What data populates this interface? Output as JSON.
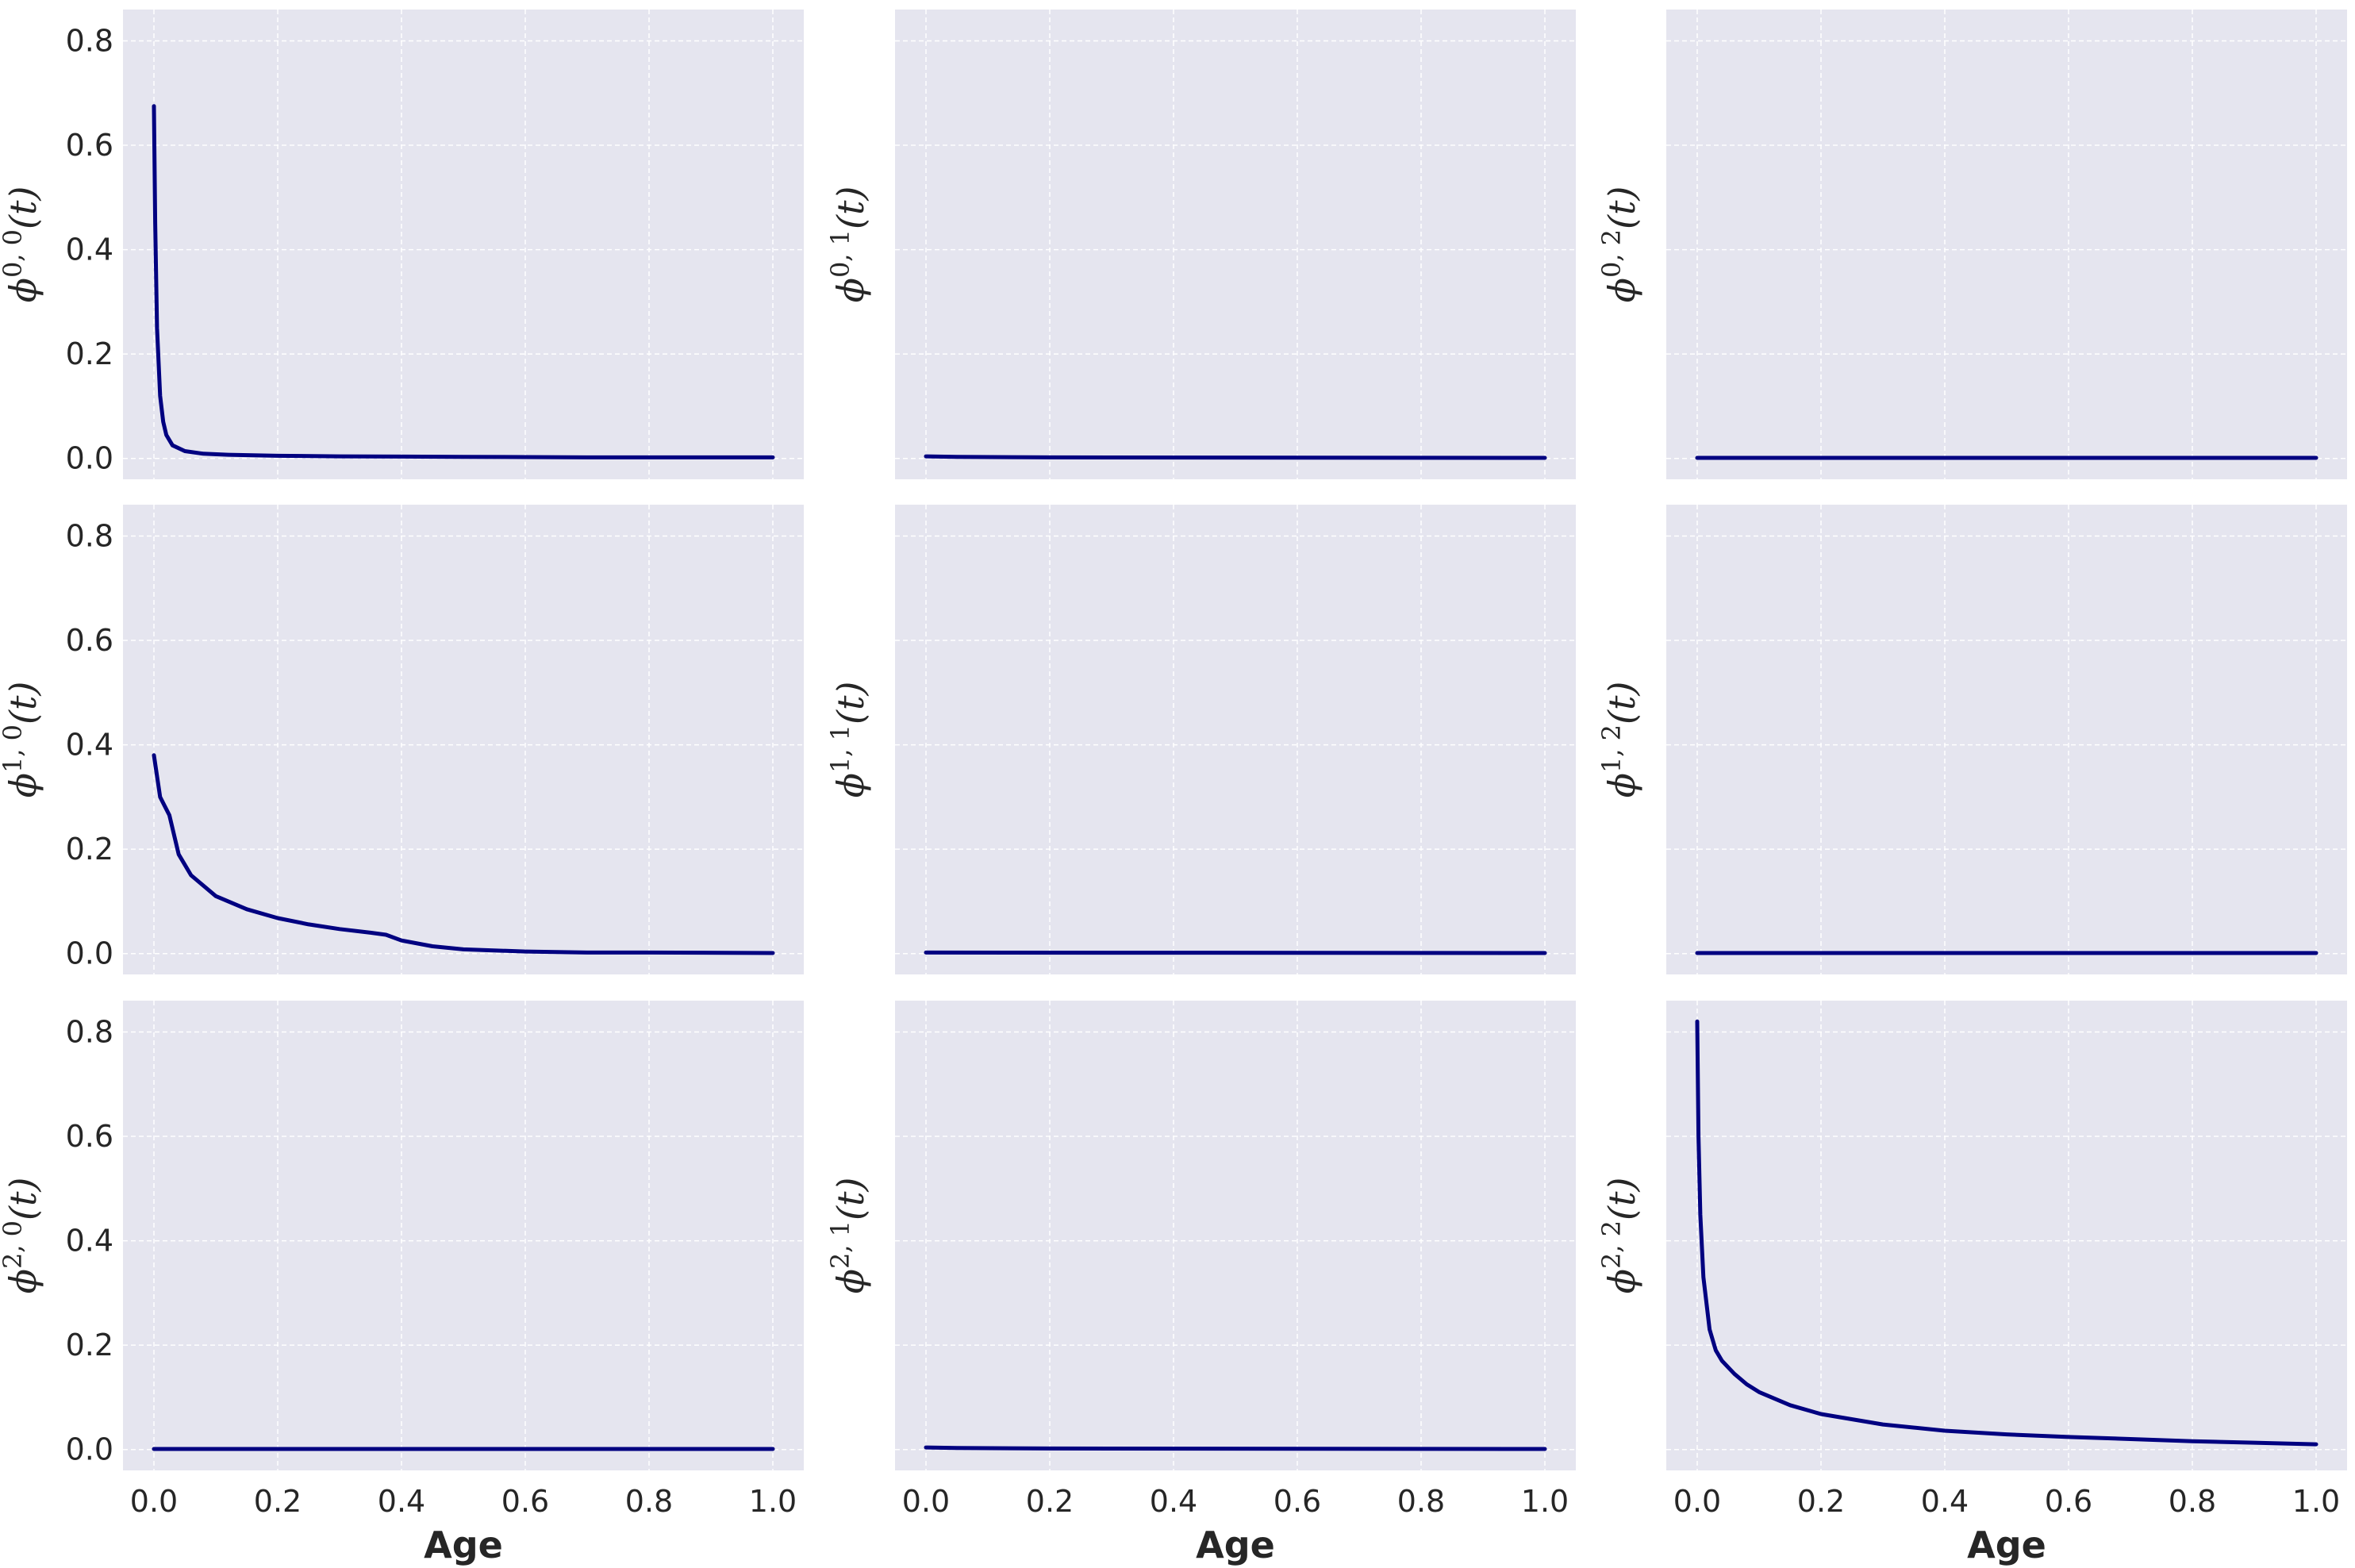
{
  "chart_data": {
    "type": "line",
    "layout": "3x3 grid, shared axes",
    "xlim": [
      -0.05,
      1.05
    ],
    "ylim": [
      -0.04,
      0.86
    ],
    "x_ticks": [
      0.0,
      0.2,
      0.4,
      0.6,
      0.8,
      1.0
    ],
    "x_tick_labels": [
      "0.0",
      "0.2",
      "0.4",
      "0.6",
      "0.8",
      "1.0"
    ],
    "y_ticks": [
      0.0,
      0.2,
      0.4,
      0.6,
      0.8
    ],
    "y_tick_labels": [
      "0.0",
      "0.2",
      "0.4",
      "0.6",
      "0.8"
    ],
    "xlabel": "Age",
    "grid": true,
    "line_color": "#000080",
    "panel_bg": "#e5e5ef",
    "grid_color": "#ffffff",
    "panels": [
      {
        "ylabel": "ϕ",
        "sup": "0, 0",
        "arg": "(t)",
        "x": [
          0.0,
          0.002,
          0.005,
          0.01,
          0.015,
          0.02,
          0.03,
          0.05,
          0.08,
          0.12,
          0.2,
          0.3,
          0.5,
          0.7,
          1.0
        ],
        "y": [
          0.675,
          0.45,
          0.25,
          0.12,
          0.07,
          0.045,
          0.025,
          0.014,
          0.009,
          0.007,
          0.005,
          0.004,
          0.003,
          0.002,
          0.002
        ]
      },
      {
        "ylabel": "ϕ",
        "sup": "0, 1",
        "arg": "(t)",
        "x": [
          0.0,
          0.05,
          0.2,
          1.0
        ],
        "y": [
          0.004,
          0.003,
          0.002,
          0.001
        ]
      },
      {
        "ylabel": "ϕ",
        "sup": "0, 2",
        "arg": "(t)",
        "x": [
          0.0,
          1.0
        ],
        "y": [
          0.001,
          0.001
        ]
      },
      {
        "ylabel": "ϕ",
        "sup": "1, 0",
        "arg": "(t)",
        "x": [
          0.0,
          0.01,
          0.025,
          0.04,
          0.06,
          0.1,
          0.15,
          0.2,
          0.25,
          0.3,
          0.35,
          0.375,
          0.4,
          0.45,
          0.5,
          0.6,
          0.7,
          0.8,
          1.0
        ],
        "y": [
          0.38,
          0.3,
          0.265,
          0.19,
          0.15,
          0.11,
          0.085,
          0.068,
          0.056,
          0.047,
          0.04,
          0.036,
          0.025,
          0.014,
          0.008,
          0.004,
          0.002,
          0.002,
          0.001
        ]
      },
      {
        "ylabel": "ϕ",
        "sup": "1, 1",
        "arg": "(t)",
        "x": [
          0.0,
          1.0
        ],
        "y": [
          0.002,
          0.001
        ]
      },
      {
        "ylabel": "ϕ",
        "sup": "1, 2",
        "arg": "(t)",
        "x": [
          0.0,
          1.0
        ],
        "y": [
          0.001,
          0.001
        ]
      },
      {
        "ylabel": "ϕ",
        "sup": "2, 0",
        "arg": "(t)",
        "x": [
          0.0,
          1.0
        ],
        "y": [
          0.001,
          0.001
        ]
      },
      {
        "ylabel": "ϕ",
        "sup": "2, 1",
        "arg": "(t)",
        "x": [
          0.0,
          0.05,
          0.2,
          1.0
        ],
        "y": [
          0.004,
          0.003,
          0.002,
          0.001
        ]
      },
      {
        "ylabel": "ϕ",
        "sup": "2, 2",
        "arg": "(t)",
        "x": [
          0.0,
          0.002,
          0.005,
          0.01,
          0.02,
          0.03,
          0.04,
          0.06,
          0.08,
          0.1,
          0.15,
          0.2,
          0.3,
          0.4,
          0.5,
          0.6,
          0.7,
          0.8,
          0.9,
          1.0
        ],
        "y": [
          0.82,
          0.6,
          0.45,
          0.33,
          0.23,
          0.19,
          0.17,
          0.145,
          0.125,
          0.11,
          0.085,
          0.068,
          0.048,
          0.036,
          0.029,
          0.024,
          0.02,
          0.016,
          0.013,
          0.01
        ]
      }
    ]
  }
}
